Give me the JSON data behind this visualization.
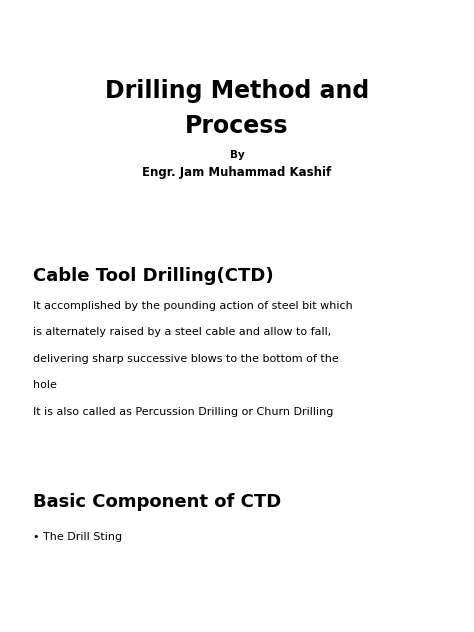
{
  "bg_color": "#ffffff",
  "title_line1": "Drilling Method and",
  "title_line2": "Process",
  "by_label": "By",
  "author": "Engr. Jam Muhammad Kashif",
  "section1_heading": "Cable Tool Drilling(CTD)",
  "section1_body1_line1": "It accomplished by the pounding action of steel bit which",
  "section1_body1_line2": "is alternately raised by a steel cable and allow to fall,",
  "section1_body1_line3": "delivering sharp successive blows to the bottom of the",
  "section1_body1_line4": "hole",
  "section1_body2": "It is also called as Percussion Drilling or Churn Drilling",
  "section2_heading": "Basic Component of CTD",
  "bullet1": "• The Drill Sting",
  "title_fontsize": 17,
  "by_fontsize": 7.5,
  "author_fontsize": 8.5,
  "heading_fontsize": 13,
  "body_fontsize": 8,
  "bullet_fontsize": 8,
  "text_color": "#000000",
  "font_family": "DejaVu Sans"
}
